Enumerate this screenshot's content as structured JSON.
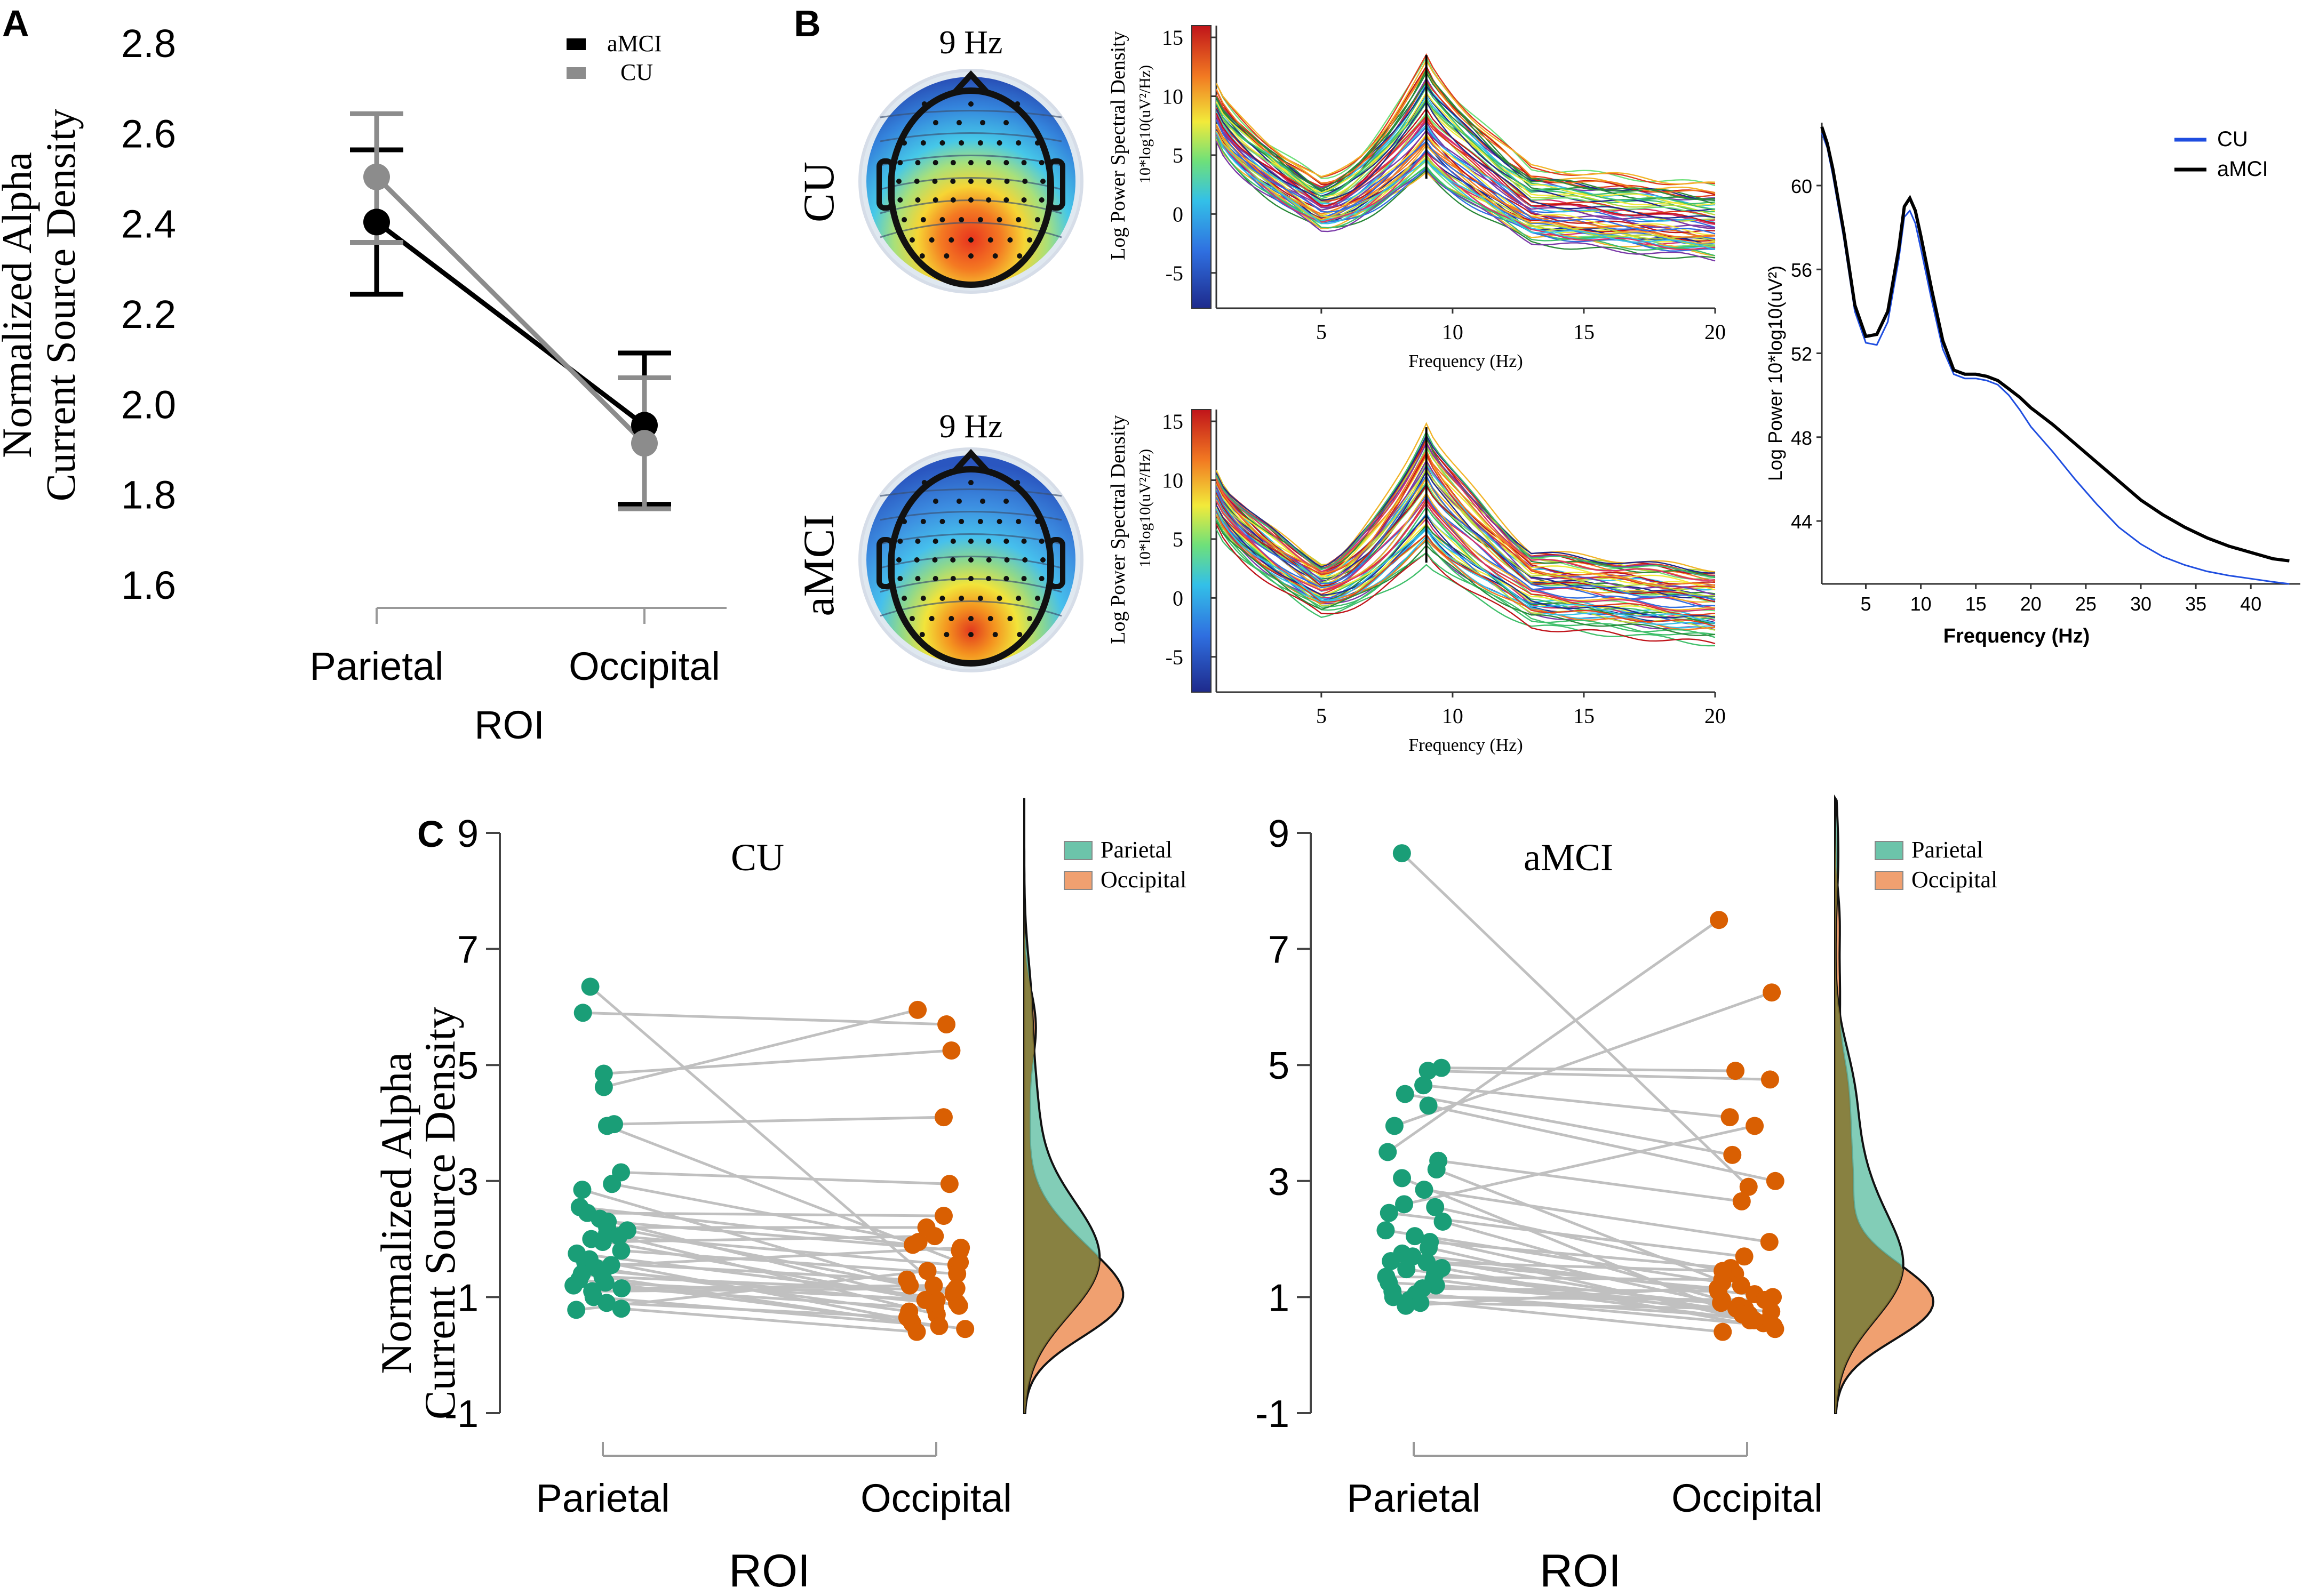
{
  "panels": {
    "a": "A",
    "b": "B",
    "c": "C"
  },
  "colors": {
    "amci": "#000000",
    "cu": "#8c8c8c",
    "parietal": "#1a9e77",
    "occipital": "#d95f02",
    "parietal_fill": "#6cc4aa",
    "occipital_fill": "#f0a070",
    "overlap_fill": "#8a7530",
    "pair_line": "#c0c0c0",
    "line_cu_blue": "#1f4ee0"
  },
  "chart_data": [
    {
      "id": "A",
      "type": "line",
      "ylabel": [
        "Normalized Alpha",
        "Current Source Density"
      ],
      "xlabel": "ROI",
      "categories": [
        "Parietal",
        "Occipital"
      ],
      "ylim": [
        1.6,
        2.8
      ],
      "yticks": [
        "2.8",
        "2.6",
        "2.4",
        "2.2",
        "2.0",
        "1.8",
        "1.6"
      ],
      "series": [
        {
          "name": "aMCI",
          "values": [
            2.405,
            1.955
          ],
          "err_low": [
            2.245,
            1.78
          ],
          "err_high": [
            2.565,
            2.115
          ]
        },
        {
          "name": "CU",
          "values": [
            2.505,
            1.915
          ],
          "err_low": [
            2.36,
            1.77
          ],
          "err_high": [
            2.645,
            2.06
          ]
        }
      ]
    },
    {
      "id": "B-topo",
      "type": "heatmap",
      "maps": [
        {
          "group": "CU",
          "frequency": "9 Hz"
        },
        {
          "group": "aMCI",
          "frequency": "9 Hz"
        }
      ]
    },
    {
      "id": "B-spectra",
      "type": "line",
      "ylabel": "Log Power Spectral Density",
      "yunit": "10*log10(uV²/Hz)",
      "xlabel": "Frequency (Hz)",
      "xlim": [
        1,
        20
      ],
      "xticks": [
        "5",
        "10",
        "15",
        "20"
      ],
      "ylim": [
        -8,
        16
      ],
      "yticks": [
        "15",
        "10",
        "5",
        "0",
        "-5"
      ],
      "colorbar_range": [
        -8,
        16
      ],
      "marker_frequency": 9,
      "panels": [
        {
          "group": "CU",
          "channels": 60,
          "peak": 13.5
        },
        {
          "group": "aMCI",
          "channels": 60,
          "peak": 14.5
        }
      ]
    },
    {
      "id": "B-average",
      "type": "line",
      "ylabel": "Log Power 10*log10(uV²)",
      "xlabel": "Frequency (Hz)",
      "xlim": [
        1,
        44
      ],
      "xticks": [
        "5",
        "10",
        "15",
        "20",
        "25",
        "30",
        "35",
        "40"
      ],
      "ylim": [
        41,
        63
      ],
      "yticks": [
        "60",
        "56",
        "52",
        "48",
        "44"
      ],
      "series": [
        {
          "name": "CU",
          "x": [
            1,
            1.5,
            2,
            3,
            4,
            5,
            6,
            7,
            8,
            8.5,
            9,
            9.5,
            10,
            11,
            12,
            13,
            14,
            15,
            16,
            17,
            18,
            19,
            20,
            22,
            24,
            26,
            28,
            30,
            32,
            34,
            36,
            38,
            40,
            42,
            43.5
          ],
          "y": [
            62.5,
            61.8,
            60.5,
            57.5,
            54,
            52.5,
            52.4,
            53.5,
            56.5,
            58.5,
            58.8,
            58.2,
            57,
            54.5,
            52.2,
            51,
            50.8,
            50.8,
            50.7,
            50.5,
            50,
            49.3,
            48.5,
            47.3,
            46,
            44.8,
            43.7,
            42.9,
            42.3,
            41.9,
            41.6,
            41.4,
            41.25,
            41.1,
            41
          ]
        },
        {
          "name": "aMCI",
          "x": [
            1,
            1.5,
            2,
            3,
            4,
            5,
            6,
            7,
            8,
            8.5,
            9,
            9.5,
            10,
            11,
            12,
            13,
            14,
            15,
            16,
            17,
            18,
            19,
            20,
            22,
            24,
            26,
            28,
            30,
            32,
            34,
            36,
            38,
            40,
            42,
            43.5
          ],
          "y": [
            62.8,
            62,
            60.8,
            57.8,
            54.3,
            52.8,
            52.9,
            54,
            57,
            59,
            59.4,
            58.8,
            57.6,
            55,
            52.6,
            51.2,
            51,
            51,
            50.9,
            50.7,
            50.3,
            49.9,
            49.4,
            48.6,
            47.7,
            46.8,
            45.9,
            45,
            44.3,
            43.7,
            43.2,
            42.8,
            42.5,
            42.2,
            42.1
          ]
        }
      ]
    },
    {
      "id": "C-CU",
      "type": "scatter",
      "title": "CU",
      "ylabel": [
        "Normalized Alpha",
        "Current Source Density"
      ],
      "xlabel": "ROI",
      "categories": [
        "Parietal",
        "Occipital"
      ],
      "ylim": [
        -1,
        9
      ],
      "yticks": [
        "9",
        "7",
        "5",
        "3",
        "1",
        "-1"
      ],
      "legend": [
        "Parietal",
        "Occipital"
      ],
      "pairs": [
        [
          6.35,
          0.9
        ],
        [
          5.9,
          5.7
        ],
        [
          4.85,
          5.25
        ],
        [
          4.62,
          5.95
        ],
        [
          3.98,
          4.1
        ],
        [
          3.95,
          1.6
        ],
        [
          3.15,
          2.95
        ],
        [
          2.95,
          1.95
        ],
        [
          2.85,
          1.2
        ],
        [
          2.55,
          1.9
        ],
        [
          2.45,
          2.4
        ],
        [
          2.35,
          0.95
        ],
        [
          2.3,
          1.8
        ],
        [
          2.2,
          2.2
        ],
        [
          2.15,
          1.05
        ],
        [
          2.1,
          0.7
        ],
        [
          2.05,
          1.55
        ],
        [
          2.0,
          0.85
        ],
        [
          1.95,
          2.05
        ],
        [
          1.8,
          1.4
        ],
        [
          1.75,
          1.0
        ],
        [
          1.65,
          0.6
        ],
        [
          1.6,
          1.3
        ],
        [
          1.55,
          1.85
        ],
        [
          1.5,
          0.75
        ],
        [
          1.4,
          0.55
        ],
        [
          1.35,
          1.1
        ],
        [
          1.3,
          0.45
        ],
        [
          1.25,
          0.95
        ],
        [
          1.2,
          0.8
        ],
        [
          1.1,
          1.15
        ],
        [
          1.0,
          0.5
        ],
        [
          0.9,
          0.65
        ],
        [
          0.8,
          0.4
        ],
        [
          0.78,
          1.45
        ],
        [
          1.45,
          0.9
        ],
        [
          1.15,
          1.2
        ]
      ]
    },
    {
      "id": "C-aMCI",
      "type": "scatter",
      "title": "aMCI",
      "ylabel": [
        "Normalized Alpha",
        "Current Source Density"
      ],
      "xlabel": "ROI",
      "categories": [
        "Parietal",
        "Occipital"
      ],
      "ylim": [
        -1,
        9
      ],
      "yticks": [
        "9",
        "7",
        "5",
        "3",
        "1",
        "-1"
      ],
      "legend": [
        "Parietal",
        "Occipital"
      ],
      "pairs": [
        [
          8.65,
          2.9
        ],
        [
          4.95,
          4.9
        ],
        [
          4.9,
          4.75
        ],
        [
          4.65,
          4.1
        ],
        [
          4.5,
          3.45
        ],
        [
          4.3,
          3.0
        ],
        [
          3.95,
          6.25
        ],
        [
          3.5,
          7.5
        ],
        [
          3.35,
          2.65
        ],
        [
          3.2,
          1.05
        ],
        [
          3.05,
          0.6
        ],
        [
          2.85,
          1.95
        ],
        [
          2.55,
          1.4
        ],
        [
          2.45,
          1.7
        ],
        [
          2.3,
          0.95
        ],
        [
          2.15,
          1.25
        ],
        [
          2.05,
          0.8
        ],
        [
          1.95,
          1.5
        ],
        [
          1.85,
          0.55
        ],
        [
          1.75,
          1.0
        ],
        [
          1.7,
          0.7
        ],
        [
          1.6,
          1.15
        ],
        [
          1.5,
          0.45
        ],
        [
          1.4,
          0.85
        ],
        [
          1.35,
          1.3
        ],
        [
          1.3,
          0.6
        ],
        [
          1.25,
          0.9
        ],
        [
          1.2,
          0.75
        ],
        [
          1.15,
          1.1
        ],
        [
          1.1,
          0.5
        ],
        [
          1.05,
          0.65
        ],
        [
          1.0,
          0.95
        ],
        [
          0.95,
          0.4
        ],
        [
          0.9,
          0.8
        ],
        [
          0.85,
          1.2
        ],
        [
          1.62,
          1.45
        ],
        [
          1.48,
          0.7
        ],
        [
          2.6,
          3.95
        ]
      ]
    }
  ]
}
